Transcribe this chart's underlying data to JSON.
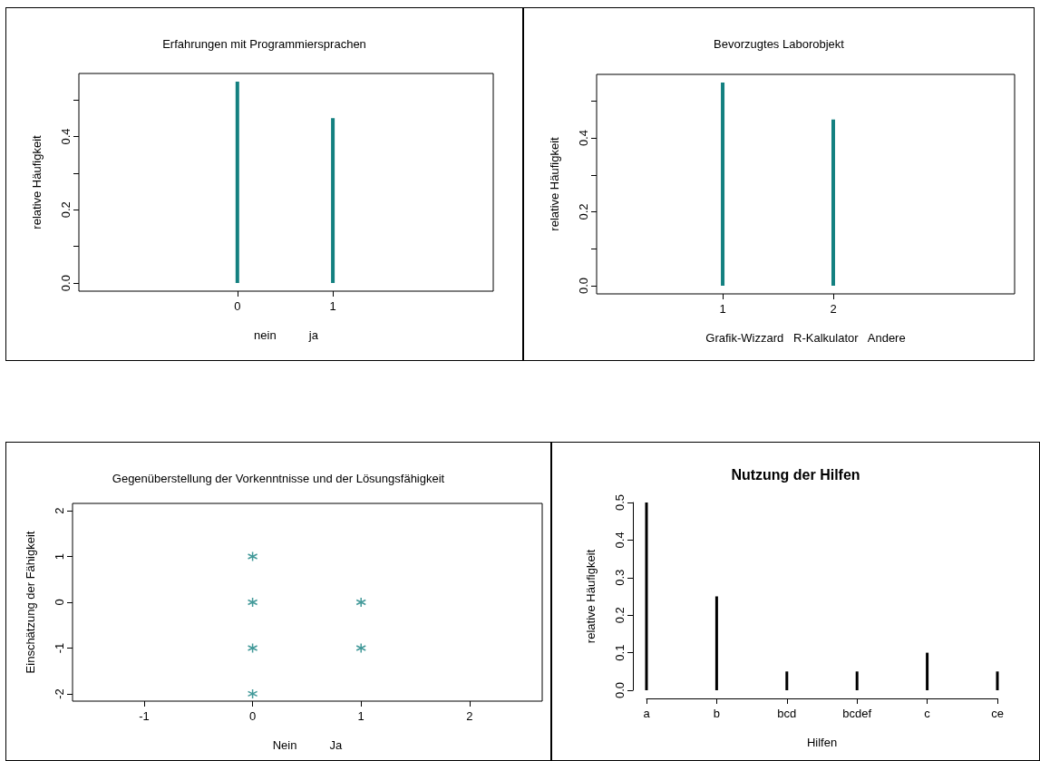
{
  "chart_data": [
    {
      "type": "bar",
      "title": "Erfahrungen mit Programmiersprachen",
      "xlabel": "nein          ja",
      "ylabel": "relative Häufigkeit",
      "x": [
        0,
        1
      ],
      "values": [
        0.55,
        0.45
      ],
      "color": "#138080",
      "xlim": [
        -1.66,
        2.68
      ],
      "xticks": [
        0,
        1
      ],
      "ylim": [
        -0.022,
        0.572
      ],
      "yticks": [
        {
          "value": 0,
          "label": "0.0"
        },
        {
          "value": 0.1,
          "label": null
        },
        0.2,
        {
          "value": 0.3,
          "label": null
        },
        0.4,
        {
          "value": 0.5,
          "label": null
        }
      ]
    },
    {
      "type": "bar",
      "title": "Bevorzugtes Laborobjekt",
      "xlabel": "Grafik-Wizzard   R-Kalkulator   Andere",
      "ylabel": "relative Häufigkeit",
      "x": [
        1,
        2
      ],
      "values": [
        0.55,
        0.45
      ],
      "color": "#138080",
      "xlim": [
        -0.14,
        3.64
      ],
      "xticks": [
        1,
        2
      ],
      "ylim": [
        -0.022,
        0.572
      ],
      "yticks": [
        {
          "value": 0,
          "label": "0.0"
        },
        {
          "value": 0.1,
          "label": null
        },
        0.2,
        {
          "value": 0.3,
          "label": null
        },
        0.4,
        {
          "value": 0.5,
          "label": null
        }
      ]
    },
    {
      "type": "scatter",
      "title": "Gegenüberstellung der Vorkenntnisse und der Lösungsfähigkeit",
      "xlabel": "Nein          Ja",
      "ylabel": "Einschätzung der Fähigkeit",
      "x": [
        0,
        0,
        0,
        0,
        1,
        1
      ],
      "values": [
        1,
        0,
        -1,
        -2,
        0,
        -1
      ],
      "color": "#138080",
      "marker": "cross",
      "xlim": [
        -1.66,
        2.67
      ],
      "xticks": [
        -1,
        0,
        1,
        2
      ],
      "ylim": [
        -2.16,
        2.16
      ],
      "yticks": [
        -2,
        -1,
        0,
        1,
        2
      ]
    },
    {
      "type": "bar",
      "title": "Nutzung der Hilfen",
      "xlabel": "Hilfen",
      "ylabel": "relative Häufigkeit",
      "categories": [
        "a",
        "b",
        "bcd",
        "bcdef",
        "c",
        "ce"
      ],
      "values": [
        0.5,
        0.25,
        0.05,
        0.05,
        0.1,
        0.05
      ],
      "color": "#000000",
      "ylim": [
        0,
        0.5
      ],
      "yticks": [
        {
          "value": 0,
          "label": "0.0"
        },
        0.1,
        0.2,
        0.3,
        0.4,
        0.5
      ]
    }
  ]
}
